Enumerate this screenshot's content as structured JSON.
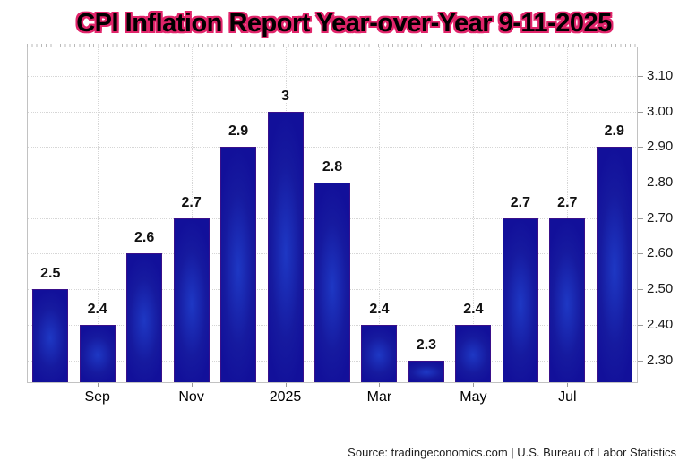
{
  "title": "CPI Inflation Report Year-over-Year 9-11-2025",
  "source": "Source: tradingeconomics.com | U.S. Bureau of Labor Statistics",
  "colors": {
    "title_outline": "#e0246a",
    "bar_center": "#1e38c4",
    "bar_mid": "#161a9f",
    "bar_edge": "#12109a",
    "bar_border": "#39108a",
    "grid": "#d6d6d6",
    "frame": "#c2c2c2",
    "text": "#000000"
  },
  "chart_data": {
    "type": "bar",
    "title": "CPI Inflation Report Year-over-Year 9-11-2025",
    "values": [
      2.5,
      2.4,
      2.6,
      2.7,
      2.9,
      3,
      2.8,
      2.4,
      2.3,
      2.4,
      2.7,
      2.7,
      2.9
    ],
    "bar_labels": [
      "2.5",
      "2.4",
      "2.6",
      "2.7",
      "2.9",
      "3",
      "2.8",
      "2.4",
      "2.3",
      "2.4",
      "2.7",
      "2.7",
      "2.9"
    ],
    "x_tick_labels": [
      "Sep",
      "Nov",
      "2025",
      "Mar",
      "May",
      "Jul"
    ],
    "x_tick_bar_indexes": [
      1,
      3,
      5,
      7,
      9,
      11
    ],
    "y_tick_labels": [
      "3.10",
      "3.00",
      "2.90",
      "2.80",
      "2.70",
      "2.60",
      "2.50",
      "2.40",
      "2.30"
    ],
    "y_tick_values": [
      3.1,
      3.0,
      2.9,
      2.8,
      2.7,
      2.6,
      2.5,
      2.4,
      2.3
    ],
    "ylim": [
      2.236,
      3.183
    ],
    "y_axis_side": "right",
    "grid": true,
    "xlabel": "",
    "ylabel": ""
  }
}
